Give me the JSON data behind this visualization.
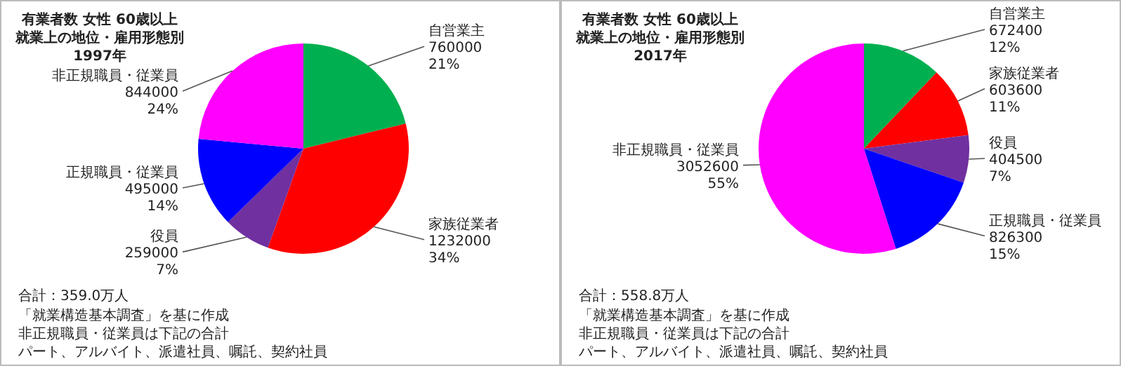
{
  "chart_data": [
    {
      "type": "pie",
      "title": "有業者数 女性 60歳以上",
      "subtitle": "就業上の地位・雇用形態別",
      "categories": [
        "自営業主",
        "家族従業者",
        "役員",
        "正規職員・従業員",
        "非正規職員・従業員"
      ],
      "values": [
        760000,
        1232000,
        259000,
        495000,
        844000
      ],
      "colors": [
        "#00b050",
        "#ff0000",
        "#7030a0",
        "#0000ff",
        "#ff00ff"
      ],
      "value_labels": [
        "760000\n21%",
        "1232000\n34%",
        "259000\n7%",
        "495000\n14%",
        "844000\n24%"
      ],
      "annotations": [
        "1997年",
        "合計：359.0万人",
        "「就業構造基本調査」を基に作成",
        "非正規職員・従業員は下記の合計",
        "パート、アルバイト、派遣社員、嘱託、契約社員"
      ]
    },
    {
      "type": "pie",
      "title": "有業者数 女性 60歳以上",
      "subtitle": "就業上の地位・雇用形態別",
      "categories": [
        "自営業主",
        "家族従業者",
        "役員",
        "正規職員・従業員",
        "非正規職員・従業員"
      ],
      "values": [
        672400,
        603600,
        404500,
        826300,
        3052600
      ],
      "colors": [
        "#00b050",
        "#ff0000",
        "#7030a0",
        "#0000ff",
        "#ff00ff"
      ],
      "value_labels": [
        "672400\n12%",
        "603600\n11%",
        "404500\n7%",
        "826300\n15%",
        "3052600\n55%"
      ],
      "annotations": [
        "2017年",
        "合計：558.8万人",
        "「就業構造基本調査」を基に作成",
        "非正規職員・従業員は下記の合計",
        "パート、アルバイト、派遣社員、嘱託、契約社員"
      ]
    }
  ]
}
